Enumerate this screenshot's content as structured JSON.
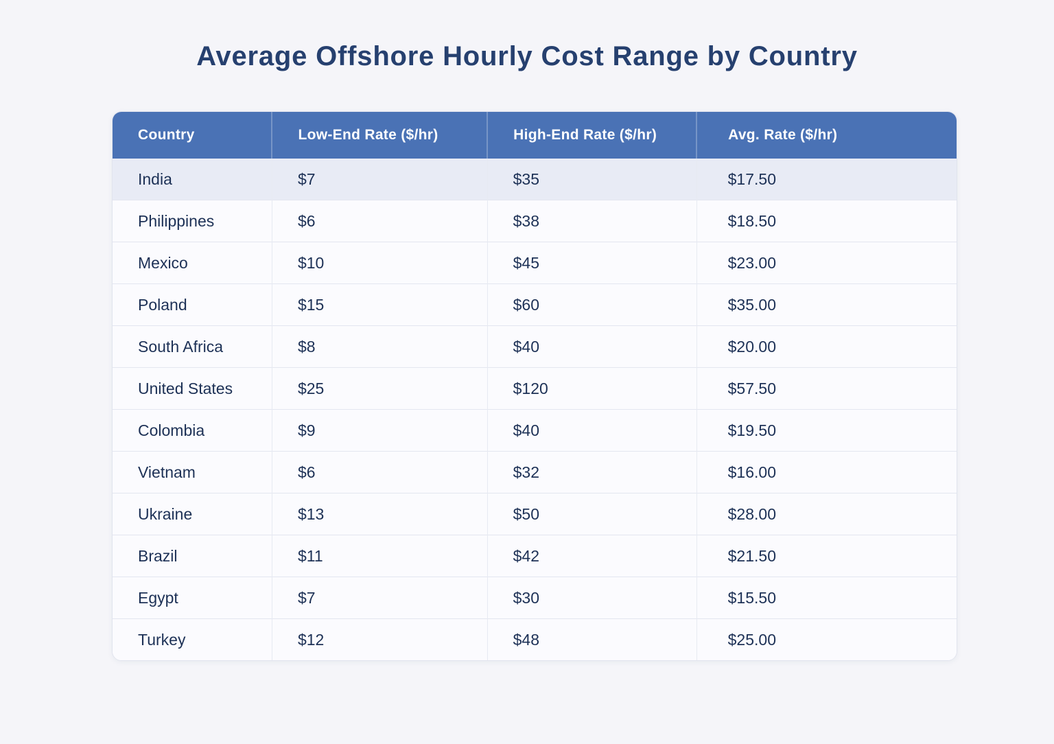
{
  "title": "Average Offshore Hourly Cost Range by Country",
  "chart_data": {
    "type": "table",
    "title": "Average Offshore Hourly Cost Range by Country",
    "columns": [
      "Country",
      "Low-End Rate ($/hr)",
      "High-End Rate ($/hr)",
      "Avg. Rate ($/hr)"
    ],
    "rows": [
      [
        "India",
        "$7",
        "$35",
        "$17.50"
      ],
      [
        "Philippines",
        "$6",
        "$38",
        "$18.50"
      ],
      [
        "Mexico",
        "$10",
        "$45",
        "$23.00"
      ],
      [
        "Poland",
        "$15",
        "$60",
        "$35.00"
      ],
      [
        "South Africa",
        "$8",
        "$40",
        "$20.00"
      ],
      [
        "United States",
        "$25",
        "$120",
        "$57.50"
      ],
      [
        "Colombia",
        "$9",
        "$40",
        "$19.50"
      ],
      [
        "Vietnam",
        "$6",
        "$32",
        "$16.00"
      ],
      [
        "Ukraine",
        "$13",
        "$50",
        "$28.00"
      ],
      [
        "Brazil",
        "$11",
        "$42",
        "$21.50"
      ],
      [
        "Egypt",
        "$7",
        "$30",
        "$15.50"
      ],
      [
        "Turkey",
        "$12",
        "$48",
        "$25.00"
      ]
    ],
    "highlighted_row_index": 0,
    "legend_position": "none",
    "grid": true
  },
  "colors": {
    "page_background": "#f5f5f9",
    "title_text": "#26406f",
    "header_background": "#4a72b5",
    "header_text": "#ffffff",
    "highlight_row_background": "#e8ebf5",
    "row_background": "#fbfbfe",
    "cell_text": "#1d3156",
    "row_border": "#e3e6f0"
  }
}
